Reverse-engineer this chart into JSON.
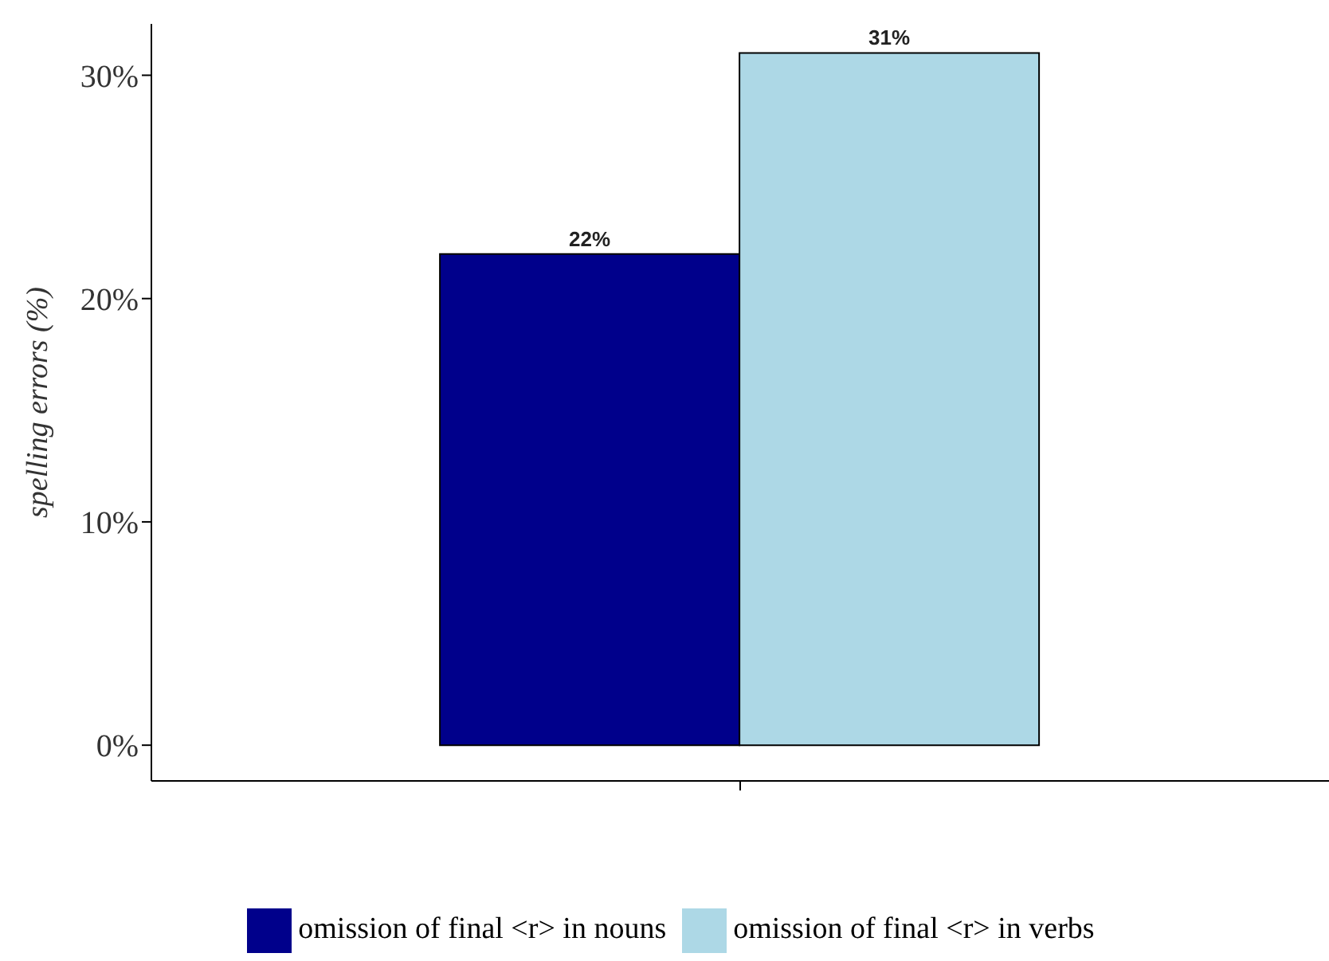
{
  "chart_data": {
    "type": "bar",
    "ylabel": "spelling errors (%)",
    "categories": [
      null
    ],
    "series": [
      {
        "name": "omission of final <r> in nouns",
        "color": "#00008b",
        "values": [
          22
        ],
        "value_labels": [
          "22%"
        ]
      },
      {
        "name": "omission of final <r> in verbs",
        "color": "#add8e6",
        "values": [
          31
        ],
        "value_labels": [
          "31%"
        ]
      }
    ],
    "ylim": [
      -1.6,
      32.3
    ],
    "yticks": [
      {
        "value": 0,
        "label": "0%"
      },
      {
        "value": 10,
        "label": "10%"
      },
      {
        "value": 20,
        "label": "20%"
      },
      {
        "value": 30,
        "label": "30%"
      }
    ],
    "tick_labels": "y",
    "grid": false,
    "legend": "bottom"
  }
}
